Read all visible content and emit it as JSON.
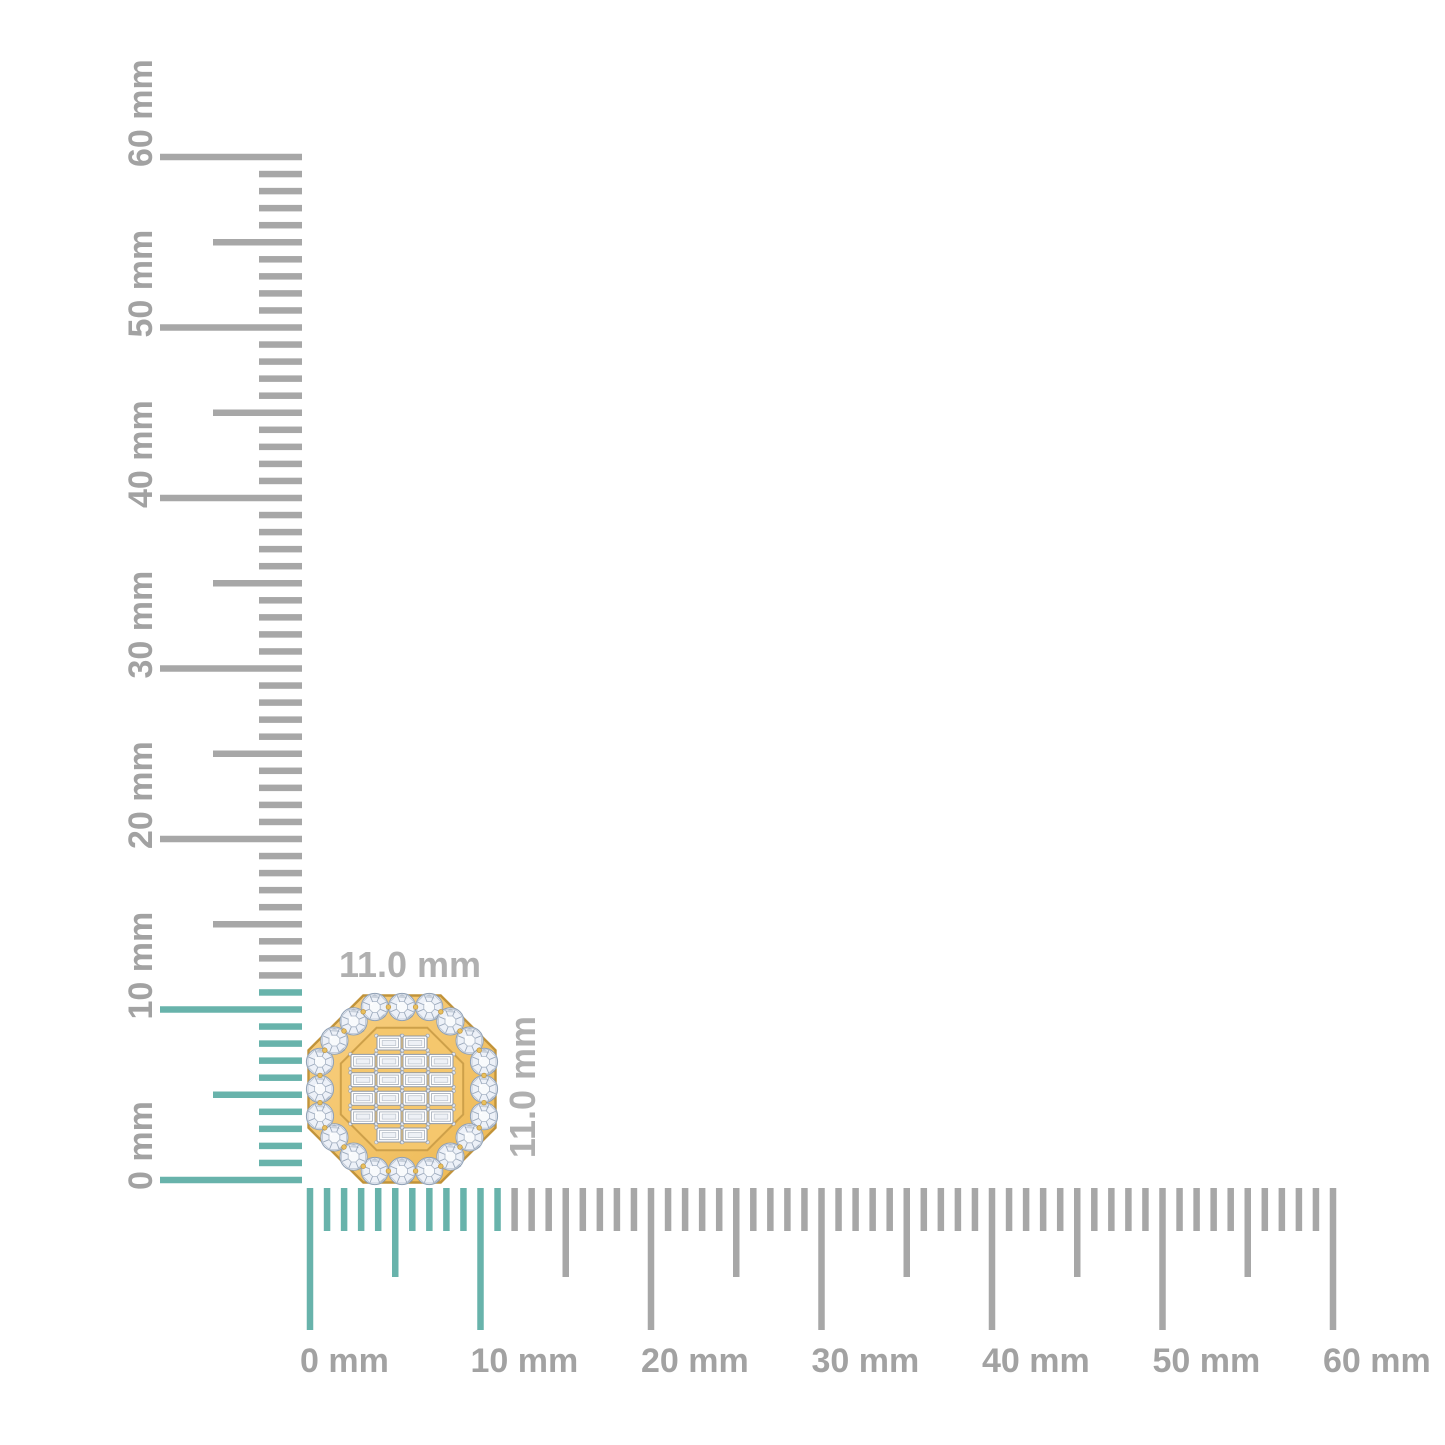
{
  "figure": {
    "description": "octagon halo diamond stud earring shown against millimeter rulers",
    "unit": "mm"
  },
  "rulers": {
    "max_mm": 60,
    "major_step_mm": 10,
    "minor_step_mm": 1,
    "highlight_to_mm": 11,
    "major_labels": [
      "0 mm",
      "10 mm",
      "20 mm",
      "30 mm",
      "40 mm",
      "50 mm",
      "60 mm"
    ],
    "colors": {
      "tick_gray": "#a7a7a7",
      "tick_highlight": "#68b3ab",
      "label_gray": "#a2a2a2"
    }
  },
  "dimension_labels": {
    "width_label": "11.0 mm",
    "height_label": "11.0 mm"
  },
  "product": {
    "border_round_stones": 20,
    "baguette_rows": [
      2,
      4,
      4,
      4,
      4,
      2
    ],
    "colors": {
      "gold": "#f5c76d",
      "gold_light": "#f9d184",
      "gold_deep": "#edb852",
      "gold_edge": "#c1933a",
      "gold_inner_line": "#cda04a",
      "bead": "#e9c05e",
      "gem_fill": "#edf1f8",
      "gem_facet": "#8fa0b5",
      "gem_table": "#f8fafc",
      "baguette_fill": "#ffffff",
      "baguette_stroke": "#8f97a4",
      "dimension_label": "#b0b0b0"
    }
  }
}
